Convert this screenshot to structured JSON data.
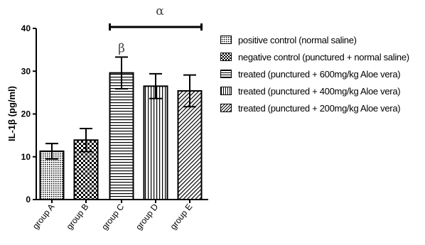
{
  "chart_data": {
    "type": "bar",
    "ylabel": "IL-1β (pg/ml)",
    "ylim": [
      0,
      40
    ],
    "yticks": [
      0,
      10,
      20,
      30,
      40
    ],
    "categories": [
      "group A",
      "group B",
      "group C",
      "group D",
      "group E"
    ],
    "values": [
      11.3,
      13.9,
      29.6,
      26.5,
      25.4
    ],
    "errors": [
      1.8,
      2.7,
      3.7,
      2.9,
      3.7
    ],
    "patterns": [
      "dots",
      "check",
      "horiz",
      "vert",
      "diag"
    ],
    "annotations": [
      {
        "text": "β",
        "category": "group C"
      },
      {
        "text": "α",
        "span": [
          "group C",
          "group E"
        ]
      }
    ],
    "legend": [
      {
        "label": "positive control (normal saline)",
        "pattern": "dots"
      },
      {
        "label": "negative control (punctured + normal saline)",
        "pattern": "check"
      },
      {
        "label": "treated (punctured + 600mg/kg Aloe vera)",
        "pattern": "horiz"
      },
      {
        "label": "treated (punctured + 400mg/kg Aloe vera)",
        "pattern": "vert"
      },
      {
        "label": "treated (punctured + 200mg/kg Aloe vera)",
        "pattern": "diag"
      }
    ]
  }
}
